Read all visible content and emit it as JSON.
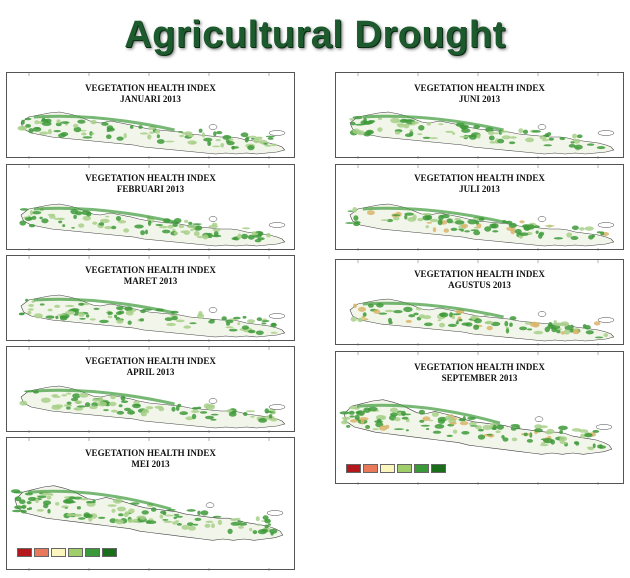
{
  "page_title": "Agricultural Drought",
  "maps": [
    {
      "heading": "VEGETATION HEALTH INDEX",
      "month": "JANUARI 2013"
    },
    {
      "heading": "VEGETATION HEALTH INDEX",
      "month": "FEBRUARI 2013"
    },
    {
      "heading": "VEGETATION HEALTH INDEX",
      "month": "MARET 2013"
    },
    {
      "heading": "VEGETATION HEALTH INDEX",
      "month": "APRIL 2013"
    },
    {
      "heading": "VEGETATION HEALTH INDEX",
      "month": "MEI 2013"
    },
    {
      "heading": "VEGETATION HEALTH INDEX",
      "month": "JUNI 2013"
    },
    {
      "heading": "VEGETATION HEALTH INDEX",
      "month": "JULI 2013"
    },
    {
      "heading": "VEGETATION HEALTH INDEX",
      "month": "AGUSTUS 2013"
    },
    {
      "heading": "VEGETATION HEALTH INDEX",
      "month": "SEPTEMBER 2013"
    }
  ],
  "legend_colors": [
    "#b3191c",
    "#e8795a",
    "#fbf6bd",
    "#9fce6b",
    "#3a9a3a",
    "#1a6e1a"
  ],
  "colors": {
    "title_green": "#1d5a2e",
    "vegetation_dark": "#3e9a3a",
    "vegetation_light": "#a8d08a",
    "land_base": "#f2f6ea",
    "stress": "#d9b46a"
  }
}
